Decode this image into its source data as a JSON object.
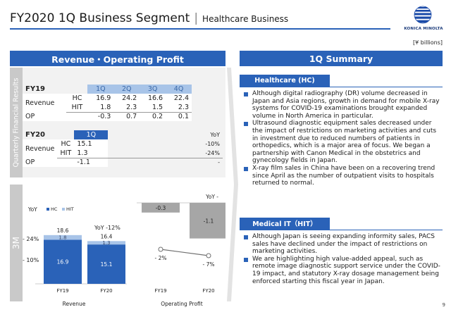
{
  "header": {
    "title": "FY2020 1Q Business Segment",
    "separator": "|",
    "subtitle": "Healthcare Business",
    "logo_text": "KONICA MINOLTA"
  },
  "unit": "[¥ billions]",
  "left_panel": {
    "heading": "Revenue・Operating Profit",
    "qfr_tab": "Quarterly Financial Results",
    "m3_tab": "3M",
    "fy19": {
      "label": "FY19",
      "quarters": [
        "1Q",
        "2Q",
        "3Q",
        "4Q"
      ],
      "revenue_label": "Revenue",
      "hc_label": "HC",
      "hit_label": "HIT",
      "op_label": "OP",
      "hc": [
        "16.9",
        "24.2",
        "16.6",
        "22.4"
      ],
      "hit": [
        "1.8",
        "2.3",
        "1.5",
        "2.3"
      ],
      "op": [
        "-0.3",
        "0.7",
        "0.2",
        "0.1"
      ]
    },
    "fy20": {
      "label": "FY20",
      "quarter": "1Q",
      "yoy_label": "YoY",
      "revenue_label": "Revenue",
      "hc_label": "HC",
      "hit_label": "HIT",
      "op_label": "OP",
      "hc": "15.1",
      "hit": "1.3",
      "op": "-1.1",
      "hc_yoy": "-10%",
      "hit_yoy": "-24%",
      "op_yoy": "-"
    }
  },
  "chart_data": [
    {
      "type": "bar",
      "title": "Revenue",
      "categories": [
        "FY19",
        "FY20"
      ],
      "series": [
        {
          "name": "HC",
          "values": [
            16.9,
            15.1
          ],
          "color": "#2a62b8"
        },
        {
          "name": "HIT",
          "values": [
            1.8,
            1.3
          ],
          "color": "#a8c4e8"
        }
      ],
      "totals": [
        "18.6",
        "16.4"
      ],
      "yoy_label": "YoY",
      "yoy_total": "YoY -12%",
      "yoy_hit": "- 24%",
      "yoy_hc": "- 10%"
    },
    {
      "type": "bar",
      "title": "Operating Profit",
      "categories": [
        "FY19",
        "FY20"
      ],
      "values": [
        -0.3,
        -1.1
      ],
      "labels": [
        "-0.3",
        "-1.1"
      ],
      "yoy_label": "YoY -",
      "margin_labels": [
        "- 2%",
        "- 7%"
      ],
      "margin_values": [
        -2,
        -7
      ]
    }
  ],
  "right_panel": {
    "heading": "1Q Summary",
    "hc_heading": "Healthcare (HC)",
    "hc_bullets": [
      "Although digital radiography (DR) volume decreased in Japan and Asia regions, growth in demand for mobile X-ray systems for COVID-19 examinations brought expanded volume in North America in particular.",
      "Ultrasound diagnostic equipment sales decreased under the impact of restrictions on marketing activities and cuts in investment due to reduced numbers of patients in orthopedics, which is a major area of focus. We began a partnership with Canon Medical in the obstetrics and gynecology fields in Japan.",
      "X-ray film sales in China have been on a recovering trend since April as the number of outpatient visits to hospitals returned to normal."
    ],
    "hit_heading": "Medical IT（HIT）",
    "hit_bullets": [
      "Although Japan is seeing expanding informity sales, PACS sales have declined under the impact of restrictions on marketing activities.",
      "We are highlighting high value-added appeal, such as remote image diagnostic support service under the COVID-19 impact, and statutory X-ray dosage management being enforced starting this fiscal year in Japan."
    ]
  },
  "page_number": "9",
  "colors": {
    "accent": "#2a62b8",
    "light_accent": "#a8c4e8",
    "op_bar": "#a6a6a6",
    "panel_bg": "#f2f2f2"
  }
}
